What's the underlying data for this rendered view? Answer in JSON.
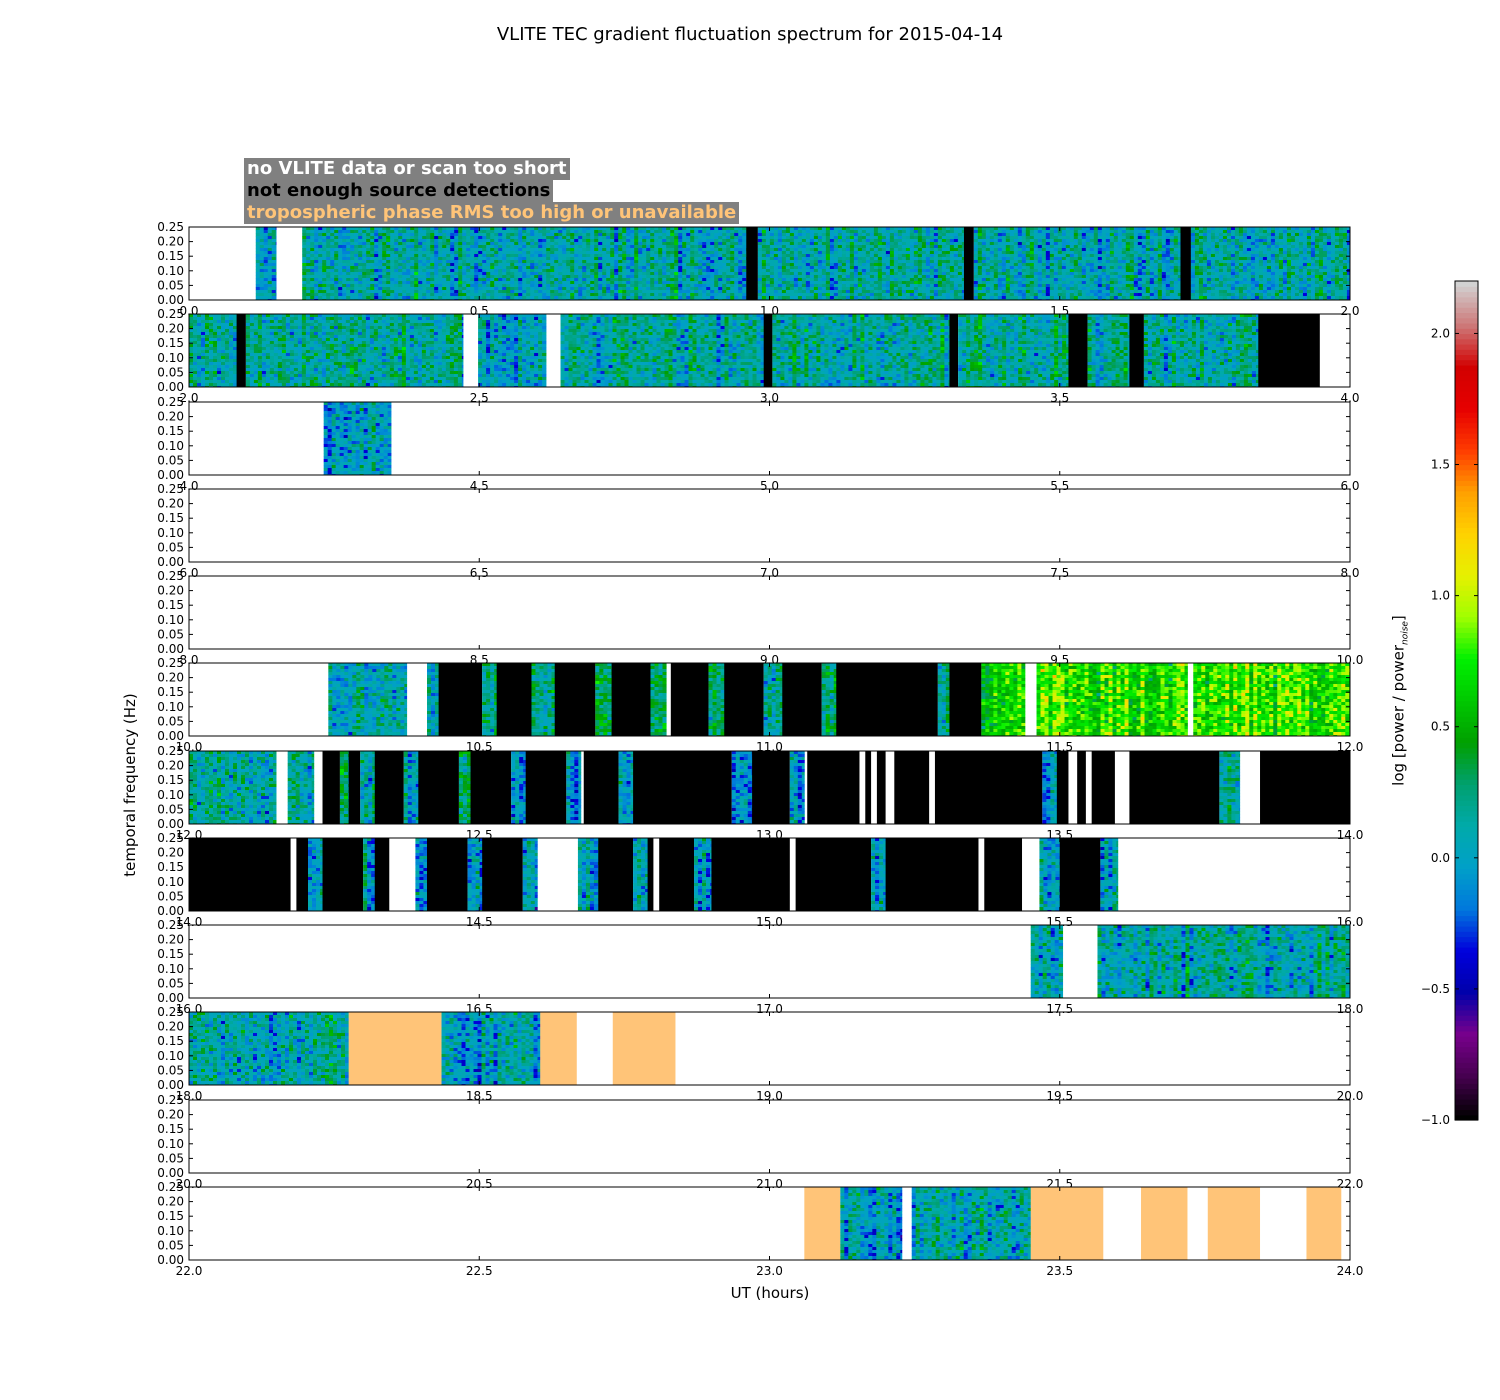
{
  "figure": {
    "title": "VLITE TEC gradient fluctuation spectrum for 2015-04-14",
    "xlabel": "UT (hours)",
    "ylabel": "temporal frequency (Hz)",
    "colorbar_label": "log [power / power",
    "colorbar_label_sub": "noise",
    "colorbar_label_end": "]"
  },
  "legend": {
    "no_data": "no VLITE data or scan too short",
    "no_detections": "not enough source detections",
    "tropo": "tropospheric phase RMS too high or unavailable"
  },
  "colors": {
    "no_data": "#ffffff",
    "no_detections": "#000000",
    "tropo": "#ffc478",
    "legend_bg": "#808080"
  },
  "chart_data": {
    "type": "heatmap",
    "ylim": [
      0,
      0.25
    ],
    "yticks": [
      "0.00",
      "0.05",
      "0.10",
      "0.15",
      "0.20",
      "0.25"
    ],
    "colorbar": {
      "range": [
        -1.0,
        2.2
      ],
      "ticks": [
        "−1.0",
        "−0.5",
        "0.0",
        "0.5",
        "1.0",
        "1.5",
        "2.0"
      ],
      "colormap": "nipy_spectral"
    },
    "panels": [
      {
        "xrange": [
          0,
          2
        ],
        "xticks": [
          "0.0",
          "0.5",
          "1.0",
          "1.5",
          "2.0"
        ],
        "segments": [
          {
            "s": 0.115,
            "e": 0.15,
            "k": "data",
            "lvl": 0.0
          },
          {
            "s": 0.195,
            "e": 0.96,
            "k": "data",
            "lvl": 0.1
          },
          {
            "s": 0.96,
            "e": 0.98,
            "k": "nodet"
          },
          {
            "s": 0.98,
            "e": 1.335,
            "k": "data",
            "lvl": 0.1
          },
          {
            "s": 1.335,
            "e": 1.352,
            "k": "nodet"
          },
          {
            "s": 1.352,
            "e": 1.708,
            "k": "data",
            "lvl": 0.1
          },
          {
            "s": 1.708,
            "e": 1.726,
            "k": "nodet"
          },
          {
            "s": 1.726,
            "e": 2.0,
            "k": "data",
            "lvl": 0.1
          }
        ]
      },
      {
        "xrange": [
          2,
          4
        ],
        "xticks": [
          "2.0",
          "2.5",
          "3.0",
          "3.5",
          "4.0"
        ],
        "segments": [
          {
            "s": 2.0,
            "e": 2.082,
            "k": "data",
            "lvl": 0.15
          },
          {
            "s": 2.082,
            "e": 2.098,
            "k": "nodet"
          },
          {
            "s": 2.098,
            "e": 2.472,
            "k": "data",
            "lvl": 0.15
          },
          {
            "s": 2.498,
            "e": 2.615,
            "k": "data",
            "lvl": 0.0
          },
          {
            "s": 2.64,
            "e": 2.99,
            "k": "data",
            "lvl": 0.15
          },
          {
            "s": 2.99,
            "e": 3.005,
            "k": "nodet"
          },
          {
            "s": 3.005,
            "e": 3.31,
            "k": "data",
            "lvl": 0.15
          },
          {
            "s": 3.31,
            "e": 3.325,
            "k": "nodet"
          },
          {
            "s": 3.325,
            "e": 3.515,
            "k": "data",
            "lvl": 0.15
          },
          {
            "s": 3.515,
            "e": 3.548,
            "k": "nodet"
          },
          {
            "s": 3.548,
            "e": 3.62,
            "k": "data",
            "lvl": 0.15
          },
          {
            "s": 3.62,
            "e": 3.645,
            "k": "nodet"
          },
          {
            "s": 3.645,
            "e": 3.842,
            "k": "data",
            "lvl": 0.15
          },
          {
            "s": 3.842,
            "e": 3.948,
            "k": "nodet"
          }
        ]
      },
      {
        "xrange": [
          4,
          6
        ],
        "xticks": [
          "4.0",
          "4.5",
          "5.0",
          "5.5",
          "6.0"
        ],
        "segments": [
          {
            "s": 4.232,
            "e": 4.348,
            "k": "data",
            "lvl": 0.0
          }
        ]
      },
      {
        "xrange": [
          6,
          8
        ],
        "xticks": [
          "6.0",
          "6.5",
          "7.0",
          "7.5",
          "8.0"
        ],
        "segments": []
      },
      {
        "xrange": [
          8,
          10
        ],
        "xticks": [
          "8.0",
          "8.5",
          "9.0",
          "9.5",
          "10.0"
        ],
        "segments": []
      },
      {
        "xrange": [
          10,
          12
        ],
        "xticks": [
          "10.0",
          "10.5",
          "11.0",
          "11.5",
          "12.0"
        ],
        "segments": [
          {
            "s": 10.24,
            "e": 10.375,
            "k": "data",
            "lvl": 0.1
          },
          {
            "s": 10.41,
            "e": 10.43,
            "k": "data",
            "lvl": 0.1
          },
          {
            "s": 10.43,
            "e": 10.505,
            "k": "nodet"
          },
          {
            "s": 10.505,
            "e": 10.53,
            "k": "data",
            "lvl": 0.2
          },
          {
            "s": 10.53,
            "e": 10.59,
            "k": "nodet"
          },
          {
            "s": 10.59,
            "e": 10.63,
            "k": "data",
            "lvl": 0.2
          },
          {
            "s": 10.63,
            "e": 10.7,
            "k": "nodet"
          },
          {
            "s": 10.7,
            "e": 10.728,
            "k": "data",
            "lvl": 0.3
          },
          {
            "s": 10.728,
            "e": 10.795,
            "k": "nodet"
          },
          {
            "s": 10.795,
            "e": 10.822,
            "k": "data",
            "lvl": 0.2
          },
          {
            "s": 10.83,
            "e": 10.895,
            "k": "nodet"
          },
          {
            "s": 10.895,
            "e": 10.922,
            "k": "data",
            "lvl": 0.2
          },
          {
            "s": 10.922,
            "e": 10.99,
            "k": "nodet"
          },
          {
            "s": 10.99,
            "e": 11.022,
            "k": "data",
            "lvl": 0.2
          },
          {
            "s": 11.022,
            "e": 11.09,
            "k": "nodet"
          },
          {
            "s": 11.09,
            "e": 11.115,
            "k": "data",
            "lvl": 0.2
          },
          {
            "s": 11.115,
            "e": 11.29,
            "k": "nodet"
          },
          {
            "s": 11.29,
            "e": 11.31,
            "k": "data",
            "lvl": 0.1
          },
          {
            "s": 11.31,
            "e": 11.365,
            "k": "nodet"
          },
          {
            "s": 11.365,
            "e": 11.44,
            "k": "data",
            "lvl": 0.7
          },
          {
            "s": 11.46,
            "e": 11.72,
            "k": "data",
            "lvl": 0.75
          },
          {
            "s": 11.73,
            "e": 12.0,
            "k": "data",
            "lvl": 0.75
          }
        ]
      },
      {
        "xrange": [
          12,
          14
        ],
        "xticks": [
          "12.0",
          "12.5",
          "13.0",
          "13.5",
          "14.0"
        ],
        "segments": [
          {
            "s": 12.0,
            "e": 12.15,
            "k": "data",
            "lvl": 0.15
          },
          {
            "s": 12.17,
            "e": 12.215,
            "k": "data",
            "lvl": 0.1
          },
          {
            "s": 12.23,
            "e": 12.26,
            "k": "nodet"
          },
          {
            "s": 12.26,
            "e": 12.275,
            "k": "data",
            "lvl": 0.1
          },
          {
            "s": 12.275,
            "e": 12.295,
            "k": "nodet"
          },
          {
            "s": 12.295,
            "e": 12.32,
            "k": "data",
            "lvl": 0.1
          },
          {
            "s": 12.32,
            "e": 12.37,
            "k": "nodet"
          },
          {
            "s": 12.37,
            "e": 12.395,
            "k": "data",
            "lvl": 0.1
          },
          {
            "s": 12.395,
            "e": 12.465,
            "k": "nodet"
          },
          {
            "s": 12.465,
            "e": 12.485,
            "k": "data",
            "lvl": 0.1
          },
          {
            "s": 12.485,
            "e": 12.555,
            "k": "nodet"
          },
          {
            "s": 12.555,
            "e": 12.58,
            "k": "data",
            "lvl": 0.0
          },
          {
            "s": 12.58,
            "e": 12.65,
            "k": "nodet"
          },
          {
            "s": 12.65,
            "e": 12.675,
            "k": "data",
            "lvl": 0.0
          },
          {
            "s": 12.68,
            "e": 12.74,
            "k": "nodet"
          },
          {
            "s": 12.74,
            "e": 12.765,
            "k": "data",
            "lvl": 0.0
          },
          {
            "s": 12.765,
            "e": 12.935,
            "k": "nodet"
          },
          {
            "s": 12.935,
            "e": 12.97,
            "k": "data",
            "lvl": -0.1
          },
          {
            "s": 12.97,
            "e": 13.035,
            "k": "nodet"
          },
          {
            "s": 13.035,
            "e": 13.06,
            "k": "data",
            "lvl": -0.1
          },
          {
            "s": 13.065,
            "e": 13.155,
            "k": "nodet"
          },
          {
            "s": 13.165,
            "e": 13.175,
            "k": "nodet"
          },
          {
            "s": 13.185,
            "e": 13.2,
            "k": "nodet"
          },
          {
            "s": 13.215,
            "e": 13.275,
            "k": "nodet"
          },
          {
            "s": 13.285,
            "e": 13.47,
            "k": "nodet"
          },
          {
            "s": 13.47,
            "e": 13.495,
            "k": "data",
            "lvl": 0.0
          },
          {
            "s": 13.495,
            "e": 13.515,
            "k": "nodet"
          },
          {
            "s": 13.53,
            "e": 13.545,
            "k": "nodet"
          },
          {
            "s": 13.555,
            "e": 13.595,
            "k": "nodet"
          },
          {
            "s": 13.62,
            "e": 13.775,
            "k": "nodet"
          },
          {
            "s": 13.775,
            "e": 13.81,
            "k": "data",
            "lvl": 0.1
          },
          {
            "s": 13.845,
            "e": 14.0,
            "k": "nodet"
          }
        ]
      },
      {
        "xrange": [
          14,
          16
        ],
        "xticks": [
          "14.0",
          "14.5",
          "15.0",
          "15.5",
          "16.0"
        ],
        "segments": [
          {
            "s": 14.0,
            "e": 14.175,
            "k": "nodet"
          },
          {
            "s": 14.185,
            "e": 14.205,
            "k": "nodet"
          },
          {
            "s": 14.205,
            "e": 14.23,
            "k": "data",
            "lvl": 0.0
          },
          {
            "s": 14.23,
            "e": 14.3,
            "k": "nodet"
          },
          {
            "s": 14.3,
            "e": 14.32,
            "k": "data",
            "lvl": 0.0
          },
          {
            "s": 14.32,
            "e": 14.345,
            "k": "nodet"
          },
          {
            "s": 14.39,
            "e": 14.41,
            "k": "data",
            "lvl": 0.0
          },
          {
            "s": 14.41,
            "e": 14.48,
            "k": "nodet"
          },
          {
            "s": 14.48,
            "e": 14.505,
            "k": "data",
            "lvl": 0.0
          },
          {
            "s": 14.505,
            "e": 14.575,
            "k": "nodet"
          },
          {
            "s": 14.575,
            "e": 14.6,
            "k": "data",
            "lvl": 0.0
          },
          {
            "s": 14.67,
            "e": 14.705,
            "k": "data",
            "lvl": 0.0
          },
          {
            "s": 14.705,
            "e": 14.765,
            "k": "nodet"
          },
          {
            "s": 14.765,
            "e": 14.79,
            "k": "data",
            "lvl": 0.1
          },
          {
            "s": 14.79,
            "e": 14.8,
            "k": "nodet"
          },
          {
            "s": 14.81,
            "e": 14.87,
            "k": "nodet"
          },
          {
            "s": 14.87,
            "e": 14.9,
            "k": "data",
            "lvl": 0.1
          },
          {
            "s": 14.9,
            "e": 15.035,
            "k": "nodet"
          },
          {
            "s": 15.045,
            "e": 15.175,
            "k": "nodet"
          },
          {
            "s": 15.175,
            "e": 15.2,
            "k": "data",
            "lvl": 0.0
          },
          {
            "s": 15.2,
            "e": 15.36,
            "k": "nodet"
          },
          {
            "s": 15.37,
            "e": 15.435,
            "k": "nodet"
          },
          {
            "s": 15.465,
            "e": 15.5,
            "k": "data",
            "lvl": 0.0
          },
          {
            "s": 15.5,
            "e": 15.57,
            "k": "nodet"
          },
          {
            "s": 15.57,
            "e": 15.6,
            "k": "data",
            "lvl": 0.1
          }
        ]
      },
      {
        "xrange": [
          16,
          18
        ],
        "xticks": [
          "16.0",
          "16.5",
          "17.0",
          "17.5",
          "18.0"
        ],
        "segments": [
          {
            "s": 17.45,
            "e": 17.505,
            "k": "data",
            "lvl": 0.1
          },
          {
            "s": 17.565,
            "e": 18.0,
            "k": "data",
            "lvl": 0.1
          }
        ]
      },
      {
        "xrange": [
          18,
          20
        ],
        "xticks": [
          "18.0",
          "18.5",
          "19.0",
          "19.5",
          "20.0"
        ],
        "segments": [
          {
            "s": 18.0,
            "e": 18.275,
            "k": "data",
            "lvl": 0.1
          },
          {
            "s": 18.275,
            "e": 18.435,
            "k": "tropo"
          },
          {
            "s": 18.435,
            "e": 18.605,
            "k": "data",
            "lvl": 0.0
          },
          {
            "s": 18.605,
            "e": 18.668,
            "k": "tropo"
          },
          {
            "s": 18.73,
            "e": 18.838,
            "k": "tropo"
          }
        ]
      },
      {
        "xrange": [
          20,
          22
        ],
        "xticks": [
          "20.0",
          "20.5",
          "21.0",
          "21.5",
          "22.0"
        ],
        "segments": []
      },
      {
        "xrange": [
          22,
          24
        ],
        "xticks": [
          "22.0",
          "22.5",
          "23.0",
          "23.5",
          "24.0"
        ],
        "segments": [
          {
            "s": 23.06,
            "e": 23.122,
            "k": "tropo"
          },
          {
            "s": 23.122,
            "e": 23.228,
            "k": "data",
            "lvl": 0.0
          },
          {
            "s": 23.245,
            "e": 23.45,
            "k": "data",
            "lvl": 0.1
          },
          {
            "s": 23.45,
            "e": 23.575,
            "k": "tropo"
          },
          {
            "s": 23.64,
            "e": 23.72,
            "k": "tropo"
          },
          {
            "s": 23.755,
            "e": 23.845,
            "k": "tropo"
          },
          {
            "s": 23.925,
            "e": 23.985,
            "k": "tropo"
          }
        ]
      }
    ]
  }
}
